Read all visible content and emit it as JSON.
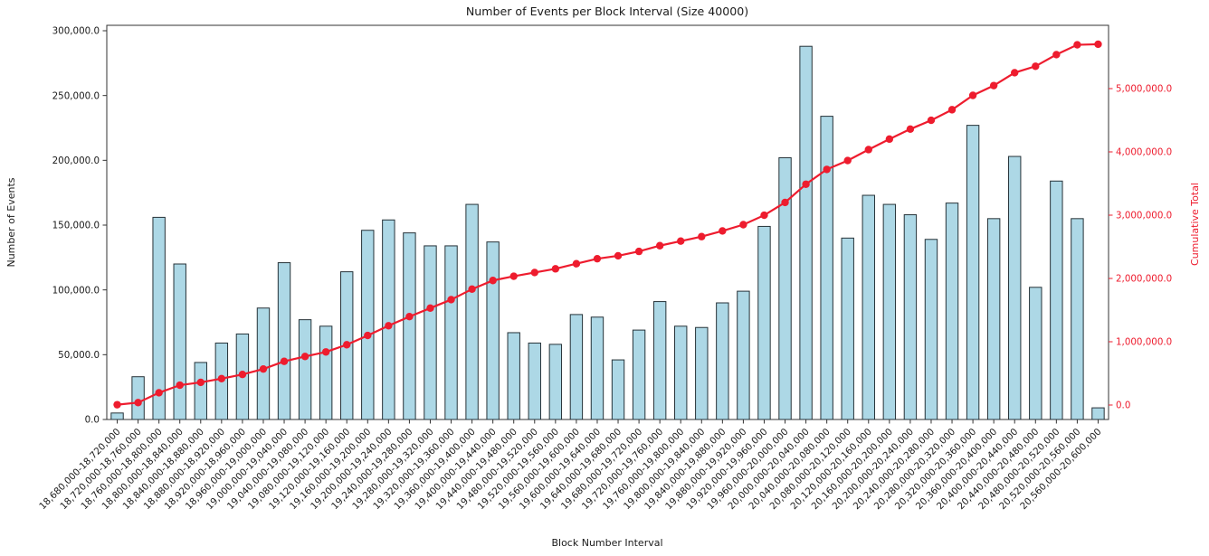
{
  "figure": {
    "background": "#ffffff"
  },
  "chart_data": {
    "type": "bar",
    "subtype": "bar-with-cumulative-line",
    "title": "Number of Events per Block Interval (Size 40000)",
    "xlabel": "Block Number Interval",
    "ylabel_left": "Number of Events",
    "ylabel_right": "Cumulative Total",
    "grid": false,
    "legend": "none",
    "colors": {
      "bar_fill": "#add8e6",
      "bar_edge": "#263238",
      "line": "#ee1c2e",
      "text": "#1a1a1a",
      "spine": "#333333",
      "right_axis_text": "#ee1c2e"
    },
    "categories": [
      "18,680,000-18,720,000",
      "18,720,000-18,760,000",
      "18,760,000-18,800,000",
      "18,800,000-18,840,000",
      "18,840,000-18,880,000",
      "18,880,000-18,920,000",
      "18,920,000-18,960,000",
      "18,960,000-19,000,000",
      "19,000,000-19,040,000",
      "19,040,000-19,080,000",
      "19,080,000-19,120,000",
      "19,120,000-19,160,000",
      "19,160,000-19,200,000",
      "19,200,000-19,240,000",
      "19,240,000-19,280,000",
      "19,280,000-19,320,000",
      "19,320,000-19,360,000",
      "19,360,000-19,400,000",
      "19,400,000-19,440,000",
      "19,440,000-19,480,000",
      "19,480,000-19,520,000",
      "19,520,000-19,560,000",
      "19,560,000-19,600,000",
      "19,600,000-19,640,000",
      "19,640,000-19,680,000",
      "19,680,000-19,720,000",
      "19,720,000-19,760,000",
      "19,760,000-19,800,000",
      "19,800,000-19,840,000",
      "19,840,000-19,880,000",
      "19,880,000-19,920,000",
      "19,920,000-19,960,000",
      "19,960,000-20,000,000",
      "20,000,000-20,040,000",
      "20,040,000-20,080,000",
      "20,080,000-20,120,000",
      "20,120,000-20,160,000",
      "20,160,000-20,200,000",
      "20,200,000-20,240,000",
      "20,240,000-20,280,000",
      "20,280,000-20,320,000",
      "20,320,000-20,360,000",
      "20,360,000-20,400,000",
      "20,400,000-20,440,000",
      "20,440,000-20,480,000",
      "20,480,000-20,520,000",
      "20,520,000-20,560,000",
      "20,560,000-20,600,000"
    ],
    "series": [
      {
        "name": "Number of Events",
        "render": "bar",
        "axis": "left",
        "values": [
          5000,
          33000,
          156000,
          120000,
          44000,
          59000,
          66000,
          86000,
          121000,
          77000,
          72000,
          114000,
          146000,
          154000,
          144000,
          134000,
          134000,
          166000,
          137000,
          67000,
          59000,
          58000,
          81000,
          79000,
          46000,
          69000,
          91000,
          72000,
          71000,
          90000,
          99000,
          149000,
          202000,
          288000,
          234000,
          140000,
          173000,
          166000,
          158000,
          139000,
          167000,
          227000,
          155000,
          203000,
          102000,
          184000,
          155000,
          9000
        ]
      },
      {
        "name": "Cumulative Total",
        "render": "line",
        "axis": "right",
        "marker": "circle",
        "values": [
          5000,
          38000,
          194000,
          314000,
          358000,
          417000,
          483000,
          569000,
          690000,
          767000,
          839000,
          953000,
          1099000,
          1253000,
          1397000,
          1531000,
          1665000,
          1831000,
          1968000,
          2035000,
          2094000,
          2152000,
          2233000,
          2312000,
          2358000,
          2427000,
          2518000,
          2590000,
          2661000,
          2751000,
          2850000,
          2999000,
          3201000,
          3489000,
          3723000,
          3863000,
          4036000,
          4202000,
          4360000,
          4499000,
          4666000,
          4893000,
          5048000,
          5251000,
          5353000,
          5537000,
          5692000,
          5701000
        ]
      }
    ],
    "left_axis": {
      "tick_labels": [
        "0.0",
        "50,000.0",
        "100,000.0",
        "150,000.0",
        "200,000.0",
        "250,000.0",
        "300,000.0"
      ],
      "tick_values": [
        0,
        50000,
        100000,
        150000,
        200000,
        250000,
        300000
      ],
      "lim": [
        0,
        304000
      ]
    },
    "right_axis": {
      "tick_labels": [
        "0.0",
        "1,000,000.0",
        "2,000,000.0",
        "3,000,000.0",
        "4,000,000.0",
        "5,000,000.0"
      ],
      "tick_values": [
        0,
        1000000,
        2000000,
        3000000,
        4000000,
        5000000
      ],
      "lim": [
        -229000,
        6000000
      ]
    }
  }
}
